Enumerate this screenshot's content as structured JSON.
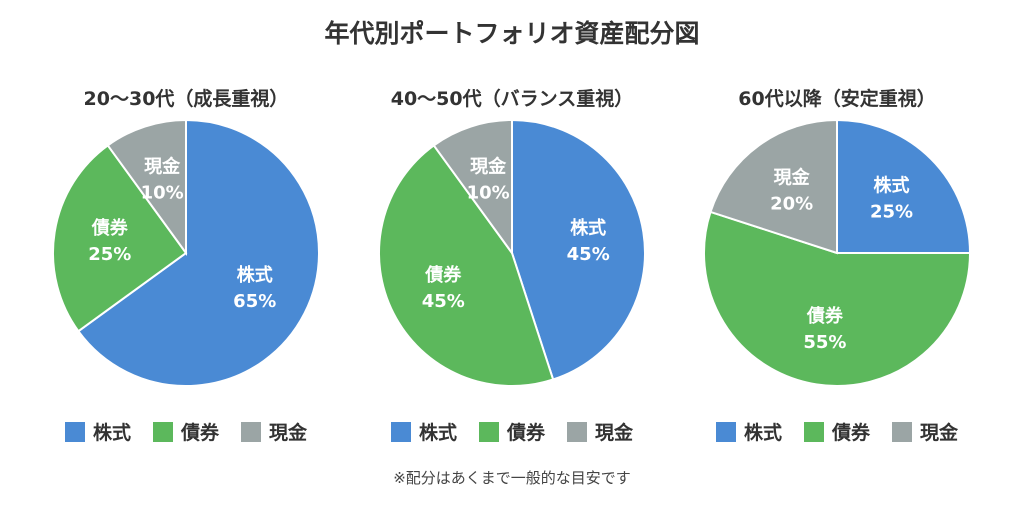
{
  "title": "年代別ポートフォリオ資産配分図",
  "colors": {
    "株式": "#4a8ad4",
    "債券": "#5cb85c",
    "現金": "#9ba5a5"
  },
  "legend": [
    "株式",
    "債券",
    "現金"
  ],
  "footnote": "※配分はあくまで一般的な目安です",
  "chart_data": [
    {
      "type": "pie",
      "title": "20〜30代（成長重視）",
      "categories": [
        "株式",
        "債券",
        "現金"
      ],
      "values": [
        65,
        25,
        10
      ],
      "labels": [
        "65%",
        "25%",
        "10%"
      ],
      "legend": "bottom",
      "start": "top",
      "direction": "clockwise"
    },
    {
      "type": "pie",
      "title": "40〜50代（バランス重視）",
      "categories": [
        "株式",
        "債券",
        "現金"
      ],
      "values": [
        45,
        45,
        10
      ],
      "labels": [
        "45%",
        "45%",
        "10%"
      ],
      "legend": "bottom",
      "start": "top",
      "direction": "clockwise"
    },
    {
      "type": "pie",
      "title": "60代以降（安定重視）",
      "categories": [
        "株式",
        "債券",
        "現金"
      ],
      "values": [
        25,
        55,
        20
      ],
      "labels": [
        "25%",
        "55%",
        "20%"
      ],
      "legend": "bottom",
      "start": "top",
      "direction": "clockwise"
    }
  ]
}
